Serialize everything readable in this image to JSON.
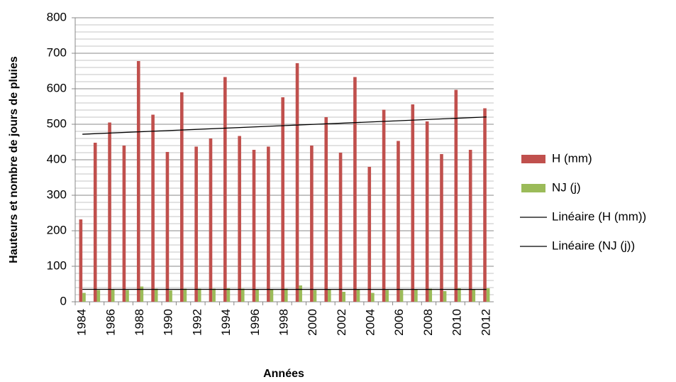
{
  "chart_data": {
    "type": "bar",
    "y_label": "Hauteurs et nombre de jours de pluies",
    "x_label": "Années",
    "categories": [
      "1984",
      null,
      "1986",
      null,
      "1988",
      null,
      "1990",
      null,
      "1992",
      null,
      "1994",
      null,
      "1996",
      null,
      "1998",
      null,
      "2000",
      null,
      "2002",
      null,
      "2004",
      null,
      "2006",
      null,
      "2008",
      null,
      "2010",
      null,
      "2012"
    ],
    "series": [
      {
        "name": "H (mm)",
        "color": "#c0504d",
        "values": [
          232,
          448,
          505,
          440,
          678,
          527,
          422,
          590,
          437,
          460,
          633,
          467,
          428,
          437,
          576,
          672,
          440,
          520,
          420,
          633,
          380,
          541,
          453,
          556,
          508,
          416,
          597,
          428,
          545
        ],
        "trendline": {
          "name": "Linéaire (H (mm))",
          "color": "#000000"
        }
      },
      {
        "name": "NJ (j)",
        "color": "#9bbb59",
        "values": [
          25,
          33,
          35,
          33,
          43,
          37,
          32,
          37,
          37,
          37,
          38,
          37,
          35,
          35,
          37,
          46,
          33,
          35,
          28,
          35,
          25,
          33,
          33,
          35,
          37,
          30,
          38,
          35,
          38
        ],
        "trendline": {
          "name": "Linéaire (NJ (j))",
          "color": "#000000"
        }
      }
    ],
    "ylim": [
      0,
      800
    ],
    "yticks": [
      0,
      100,
      200,
      300,
      400,
      500,
      600,
      700,
      800
    ],
    "grid": true,
    "minor_grid": 20,
    "legend": "right"
  }
}
